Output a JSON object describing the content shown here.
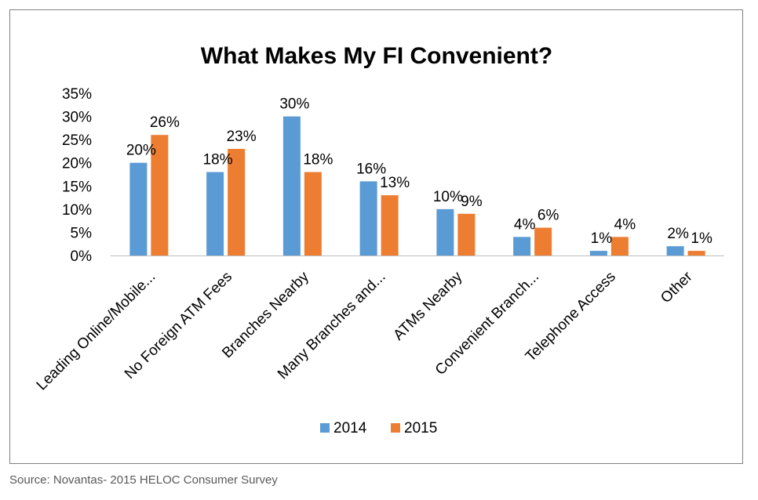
{
  "chart_data": {
    "type": "bar",
    "title": "What Makes My FI Convenient?",
    "categories": [
      "Leading Online/Mobile...",
      "No Foreign ATM Fees",
      "Branches Nearby",
      "Many Branches and...",
      "ATMs Nearby",
      "Convenient Branch...",
      "Telephone Access",
      "Other"
    ],
    "series": [
      {
        "name": "2014",
        "color": "#5B9BD5",
        "values": [
          20,
          18,
          30,
          16,
          10,
          4,
          1,
          2
        ],
        "labels": [
          "20%",
          "18%",
          "30%",
          "16%",
          "10%",
          "4%",
          "1%",
          "2%"
        ]
      },
      {
        "name": "2015",
        "color": "#ED7D31",
        "values": [
          26,
          23,
          18,
          13,
          9,
          6,
          4,
          1
        ],
        "labels": [
          "26%",
          "23%",
          "18%",
          "13%",
          "9%",
          "6%",
          "4%",
          "1%"
        ]
      }
    ],
    "ylim": [
      0,
      35
    ],
    "yticks": [
      "0%",
      "5%",
      "10%",
      "15%",
      "20%",
      "25%",
      "30%",
      "35%"
    ],
    "ytick_values": [
      0,
      5,
      10,
      15,
      20,
      25,
      30,
      35
    ],
    "grid": false,
    "legend": "bottom"
  },
  "source": "Source: Novantas- 2015 HELOC Consumer Survey"
}
